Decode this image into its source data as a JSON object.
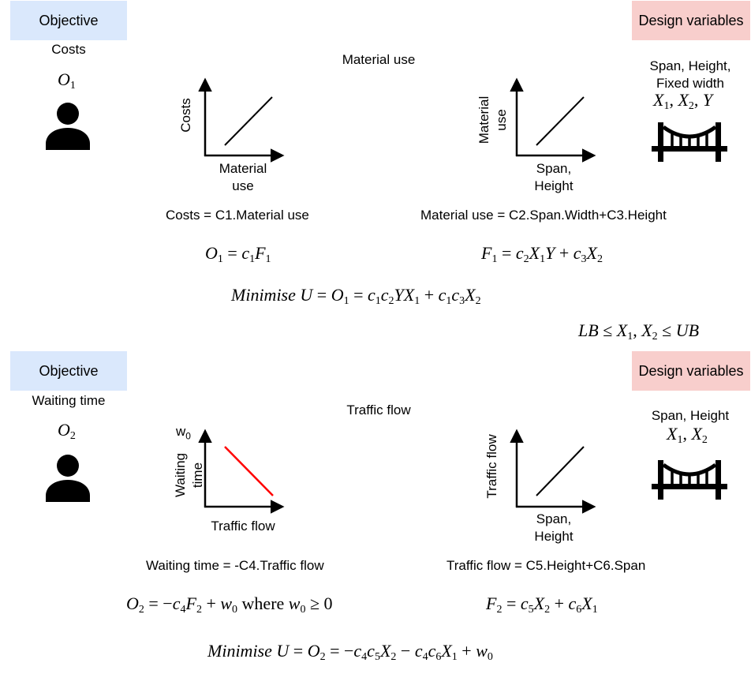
{
  "top": {
    "objective_tag": "Objective",
    "design_tag": "Design variables",
    "objective_name": "Costs",
    "objective_symbol": "O",
    "objective_symbol_sub": "1",
    "middle_title": "Material use",
    "design_vars_line1": "Span, Height,",
    "design_vars_line2": "Fixed width",
    "design_vars_math": "X1, X2, Y",
    "chart1": {
      "ylabel": "Costs",
      "xlabel_line1": "Material",
      "xlabel_line2": "use",
      "line_color": "#000000"
    },
    "chart2": {
      "ylabel_line1": "Material",
      "ylabel_line2": "use",
      "xlabel_line1": "Span,",
      "xlabel_line2": "Height",
      "line_color": "#000000"
    },
    "eq1_text": "Costs = C1.Material use",
    "eq2_text": "Material use = C2.Span.Width+C3.Height",
    "eq1_math": "O1 = c1F1",
    "eq2_math": "F1 = c2X1Y + c3X2",
    "minimise": "Minimise U = O1 = c1c2YX1 + c1c3X2",
    "bounds": "LB ≤ X1, X2 ≤ UB"
  },
  "bottom": {
    "objective_tag": "Objective",
    "design_tag": "Design variables",
    "objective_name": "Waiting time",
    "objective_symbol": "O",
    "objective_symbol_sub": "2",
    "middle_title": "Traffic flow",
    "design_vars_line1": "Span, Height",
    "design_vars_math": "X1, X2",
    "chart1": {
      "ylabel_line1": "Waiting",
      "ylabel_line2": "time",
      "y_marker": "w",
      "y_marker_sub": "0",
      "xlabel": "Traffic flow",
      "line_color": "#ff0000"
    },
    "chart2": {
      "ylabel": "Traffic flow",
      "xlabel_line1": "Span,",
      "xlabel_line2": "Height",
      "line_color": "#000000"
    },
    "eq1_text": "Waiting time = -C4.Traffic flow",
    "eq2_text": "Traffic flow = C5.Height+C6.Span",
    "eq1_math": "O2 = −c4F2 + w0 where w0 ≥ 0",
    "eq2_math": "F2 = c5X2 + c6X1",
    "minimise": "Minimise U = O2 = −c4c5X2 − c4c6X1 + w0"
  },
  "icons": {
    "person": "person-icon",
    "bridge": "bridge-icon"
  },
  "colors": {
    "objective_bg": "#dae8fc",
    "design_bg": "#f8cecc",
    "decreasing_line": "#ff0000"
  }
}
